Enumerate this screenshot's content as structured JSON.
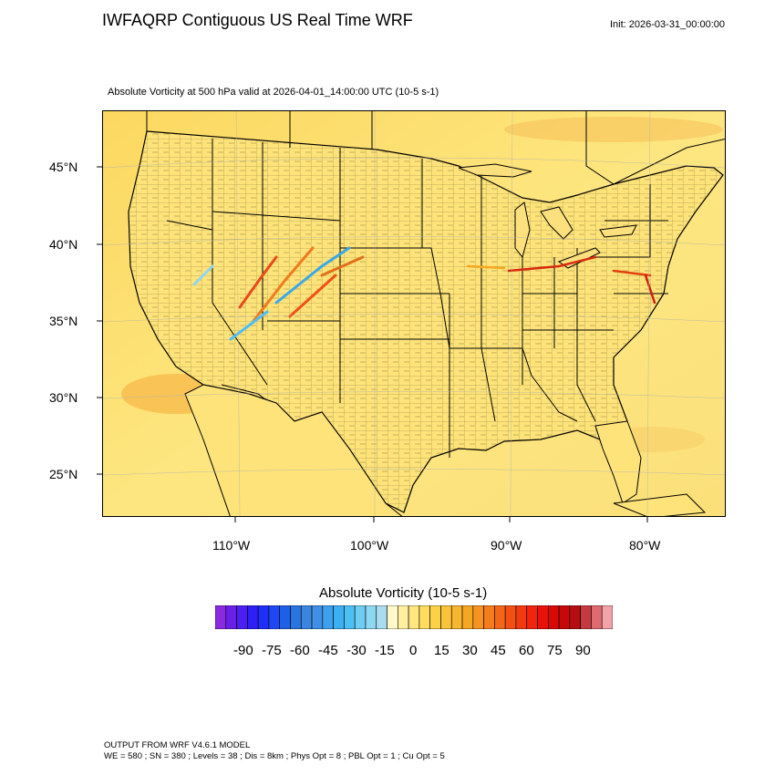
{
  "header": {
    "title": "IWFAQRP Contiguous US Real Time WRF",
    "init": "Init: 2026-03-31_00:00:00",
    "subtitle": "Absolute Vorticity at 500 hPa valid at 2026-04-01_14:00:00 UTC   (10-5 s-1)"
  },
  "map": {
    "lat_labels": [
      "45°N",
      "40°N",
      "35°N",
      "30°N",
      "25°N"
    ],
    "lon_labels": [
      "110°W",
      "100°W",
      "90°W",
      "80°W"
    ],
    "background_color": "#fde37a",
    "land_color": "#fde37a",
    "ocean_color": "#fbe07d"
  },
  "colorbar": {
    "title": "Absolute Vorticity  (10-5 s-1)",
    "tick_labels": [
      "-90",
      "-75",
      "-60",
      "-45",
      "-30",
      "-15",
      "0",
      "15",
      "30",
      "45",
      "60",
      "75",
      "90"
    ],
    "colors": [
      "#8a2be2",
      "#6a1fe8",
      "#4b1ff0",
      "#2d1ff5",
      "#1f2ff7",
      "#1f48f2",
      "#1e5fe8",
      "#2a74e0",
      "#3a86df",
      "#3f8fe6",
      "#3da0ee",
      "#3db0f3",
      "#4cc0f4",
      "#6fcdf3",
      "#8ed7f0",
      "#a9dcee",
      "#fff8c8",
      "#fff0a0",
      "#ffe680",
      "#fddc60",
      "#fbd247",
      "#f9c43a",
      "#f7b62f",
      "#f5a623",
      "#f59220",
      "#f57c1c",
      "#f36618",
      "#f25014",
      "#f23a10",
      "#f2240c",
      "#e81208",
      "#d80a06",
      "#c80808",
      "#b60e10",
      "#c43a40",
      "#df6a70",
      "#f2a2a8"
    ]
  },
  "footer": {
    "line1": "OUTPUT FROM WRF V4.6.1 MODEL",
    "line2": "WE = 580 ; SN = 380 ; Levels = 38 ; Dis = 8km ; Phys Opt = 8 ; PBL Opt = 1 ; Cu Opt = 5"
  }
}
